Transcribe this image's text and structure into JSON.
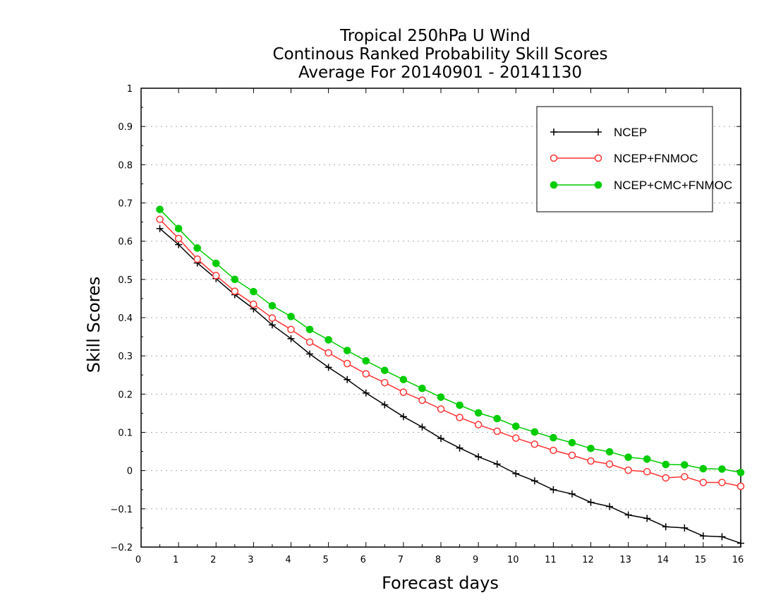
{
  "chart_data": {
    "type": "line",
    "title_lines": [
      "Tropical 250hPa U Wind",
      "Continous Ranked Probability Skill Scores",
      "Average For 20140901 - 20141130"
    ],
    "xlabel": "Forecast days",
    "ylabel": "Skill Scores",
    "xlim": [
      0,
      16
    ],
    "ylim": [
      -0.2,
      1
    ],
    "x_ticks": [
      0,
      1,
      2,
      3,
      4,
      5,
      6,
      7,
      8,
      9,
      10,
      11,
      12,
      13,
      14,
      15,
      16
    ],
    "y_ticks": [
      -0.2,
      -0.1,
      0,
      0.1,
      0.2,
      0.3,
      0.4,
      0.5,
      0.6,
      0.7,
      0.8,
      0.9,
      1
    ],
    "y_tick_labels": [
      "−0.2",
      "−0.1",
      "0",
      "0.1",
      "0.2",
      "0.3",
      "0.4",
      "0.5",
      "0.6",
      "0.7",
      "0.8",
      "0.9",
      "1"
    ],
    "grid": "horizontal dotted",
    "legend_position": "top-right",
    "x": [
      0.5,
      1,
      1.5,
      2,
      2.5,
      3,
      3.5,
      4,
      4.5,
      5,
      5.5,
      6,
      6.5,
      7,
      7.5,
      8,
      8.5,
      9,
      9.5,
      10,
      10.5,
      11,
      11.5,
      12,
      12.5,
      13,
      13.5,
      14,
      14.5,
      15,
      15.5,
      16
    ],
    "series": [
      {
        "name": "NCEP",
        "color": "#000000",
        "marker": "plus",
        "values": [
          0.633,
          0.591,
          0.543,
          0.502,
          0.46,
          0.423,
          0.381,
          0.345,
          0.305,
          0.27,
          0.238,
          0.203,
          0.172,
          0.141,
          0.114,
          0.084,
          0.059,
          0.036,
          0.017,
          -0.008,
          -0.027,
          -0.05,
          -0.061,
          -0.083,
          -0.094,
          -0.116,
          -0.125,
          -0.147,
          -0.15,
          -0.171,
          -0.173,
          -0.19
        ]
      },
      {
        "name": "NCEP+FNMOC",
        "color": "#ff3333",
        "marker": "open-circle",
        "values": [
          0.657,
          0.607,
          0.553,
          0.51,
          0.469,
          0.435,
          0.399,
          0.369,
          0.336,
          0.308,
          0.28,
          0.253,
          0.23,
          0.205,
          0.184,
          0.161,
          0.139,
          0.12,
          0.103,
          0.085,
          0.069,
          0.053,
          0.04,
          0.025,
          0.017,
          0.001,
          -0.003,
          -0.019,
          -0.016,
          -0.031,
          -0.031,
          -0.041
        ]
      },
      {
        "name": "NCEP+CMC+FNMOC",
        "color": "#00cc00",
        "marker": "filled-circle",
        "values": [
          0.683,
          0.633,
          0.582,
          0.542,
          0.5,
          0.468,
          0.431,
          0.403,
          0.369,
          0.342,
          0.314,
          0.287,
          0.262,
          0.238,
          0.215,
          0.192,
          0.171,
          0.151,
          0.136,
          0.116,
          0.101,
          0.086,
          0.073,
          0.058,
          0.049,
          0.035,
          0.03,
          0.016,
          0.015,
          0.005,
          0.004,
          -0.005
        ]
      }
    ]
  }
}
